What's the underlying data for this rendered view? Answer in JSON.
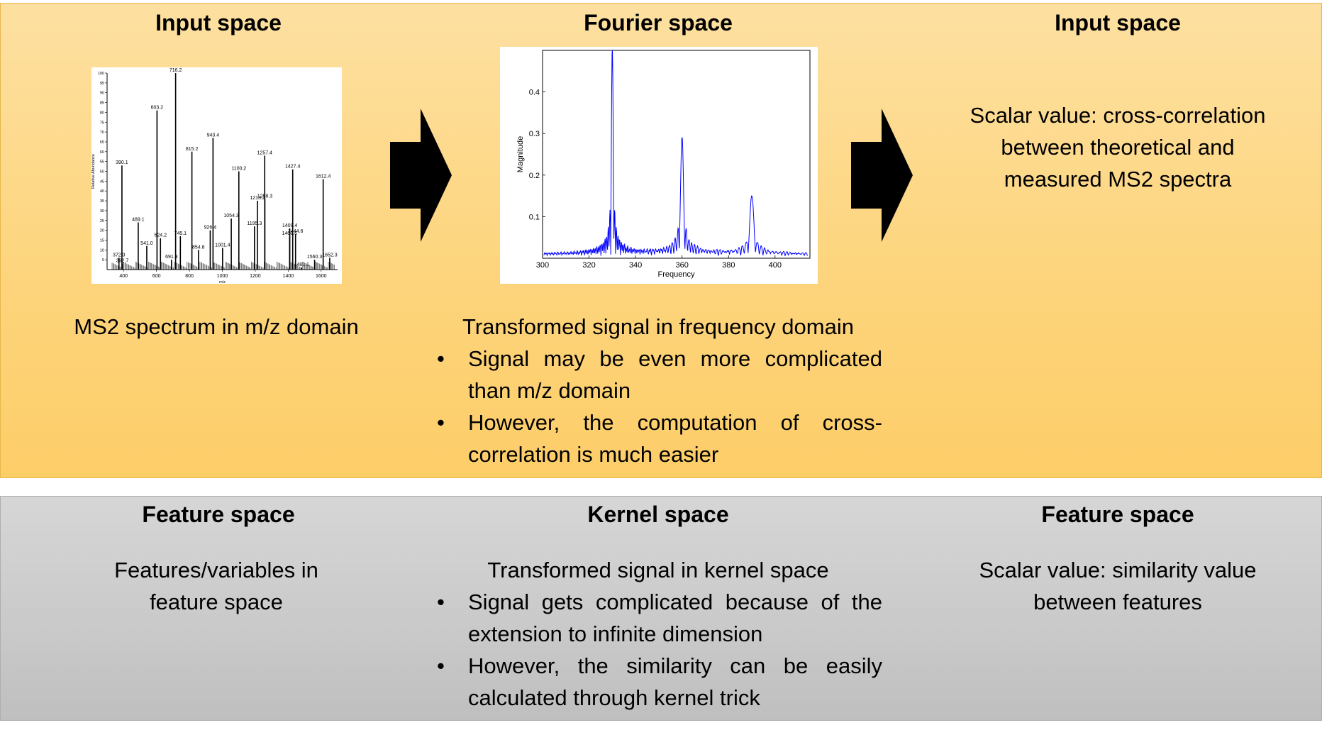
{
  "top_row": {
    "left": {
      "header": "Input space",
      "caption": "MS2 spectrum in m/z domain",
      "spectrum_image": {
        "xlabel": "m/z",
        "ylabel": "Relative Abundance",
        "y_ticks": [
          "5",
          "10",
          "15",
          "20",
          "25",
          "30",
          "35",
          "40",
          "45",
          "50",
          "55",
          "60",
          "65",
          "70",
          "75",
          "80",
          "85",
          "90",
          "95",
          "100"
        ],
        "x_ticks": [
          "400",
          "600",
          "800",
          "1000",
          "1200",
          "1400",
          "1600"
        ],
        "peaks": [
          {
            "mz": 372.0,
            "abundance": 6,
            "label": "372.0"
          },
          {
            "mz": 390.1,
            "abundance": 53,
            "label": "390.1"
          },
          {
            "mz": 392.7,
            "abundance": 3,
            "label": "392.7"
          },
          {
            "mz": 489.1,
            "abundance": 24,
            "label": "489.1"
          },
          {
            "mz": 541.0,
            "abundance": 12,
            "label": "541.0"
          },
          {
            "mz": 603.2,
            "abundance": 81,
            "label": "603.2"
          },
          {
            "mz": 624.2,
            "abundance": 16,
            "label": "624.2"
          },
          {
            "mz": 691.3,
            "abundance": 5,
            "label": "691.3"
          },
          {
            "mz": 716.2,
            "abundance": 100,
            "label": "716.2"
          },
          {
            "mz": 745.1,
            "abundance": 17,
            "label": "745.1"
          },
          {
            "mz": 815.2,
            "abundance": 60,
            "label": "815.2"
          },
          {
            "mz": 854.8,
            "abundance": 10,
            "label": "854.8"
          },
          {
            "mz": 926.4,
            "abundance": 20,
            "label": "926.4"
          },
          {
            "mz": 943.4,
            "abundance": 67,
            "label": "943.4"
          },
          {
            "mz": 1001.4,
            "abundance": 11,
            "label": "1001.4"
          },
          {
            "mz": 1054.3,
            "abundance": 26,
            "label": "1054.3"
          },
          {
            "mz": 1100.2,
            "abundance": 50,
            "label": "1100.2"
          },
          {
            "mz": 1195.3,
            "abundance": 22,
            "label": "1195.3"
          },
          {
            "mz": 1213.2,
            "abundance": 35,
            "label": "1213.2"
          },
          {
            "mz": 1257.4,
            "abundance": 58,
            "label": "1257.4"
          },
          {
            "mz": 1258.3,
            "abundance": 36,
            "label": "1258.3"
          },
          {
            "mz": 1408.6,
            "abundance": 17,
            "label": "1408.6"
          },
          {
            "mz": 1409.4,
            "abundance": 21,
            "label": "1409.4"
          },
          {
            "mz": 1427.4,
            "abundance": 51,
            "label": "1427.4"
          },
          {
            "mz": 1444.6,
            "abundance": 18,
            "label": "1444.6"
          },
          {
            "mz": 1481.1,
            "abundance": 1,
            "label": "1481.1"
          },
          {
            "mz": 1560.3,
            "abundance": 5,
            "label": "1560.3"
          },
          {
            "mz": 1612.4,
            "abundance": 46,
            "label": "1612.4"
          },
          {
            "mz": 1652.3,
            "abundance": 6,
            "label": "1652.3"
          }
        ]
      }
    },
    "middle": {
      "header": "Fourier space",
      "caption": "Transformed signal in frequency domain",
      "bullets": [
        "Signal may be even more complicated than m/z domain",
        "However, the computation of cross-correlation is much easier"
      ],
      "fourier_image": {
        "xlabel": "Frequency",
        "ylabel": "Magnitude",
        "x_ticks": [
          "300",
          "320",
          "340",
          "360",
          "380",
          "400"
        ],
        "y_ticks": [
          "0.1",
          "0.2",
          "0.3",
          "0.4"
        ],
        "xlim": [
          300,
          415
        ],
        "ylim": [
          0,
          0.5
        ],
        "peaks": [
          {
            "freq": 330,
            "magnitude": 0.5
          },
          {
            "freq": 360,
            "magnitude": 0.28
          },
          {
            "freq": 390,
            "magnitude": 0.14
          }
        ]
      }
    },
    "right": {
      "header": "Input space",
      "caption": "Scalar value: cross-correlation between theoretical and measured MS2 spectra"
    }
  },
  "bottom_row": {
    "left": {
      "header": "Feature space",
      "caption": "Features/variables in feature space"
    },
    "middle": {
      "header": "Kernel space",
      "caption": "Transformed signal in kernel space",
      "bullets": [
        "Signal gets complicated because of the extension to infinite dimension",
        "However, the similarity can be easily calculated through kernel trick"
      ]
    },
    "right": {
      "header": "Feature space",
      "caption": "Scalar value: similarity value between features"
    }
  },
  "colors": {
    "top_panel": "#fdd57e",
    "bottom_panel": "#c9c9c9",
    "arrow": "#000000",
    "fourier_line": "#0000ff"
  },
  "bullet_glyph": "•"
}
